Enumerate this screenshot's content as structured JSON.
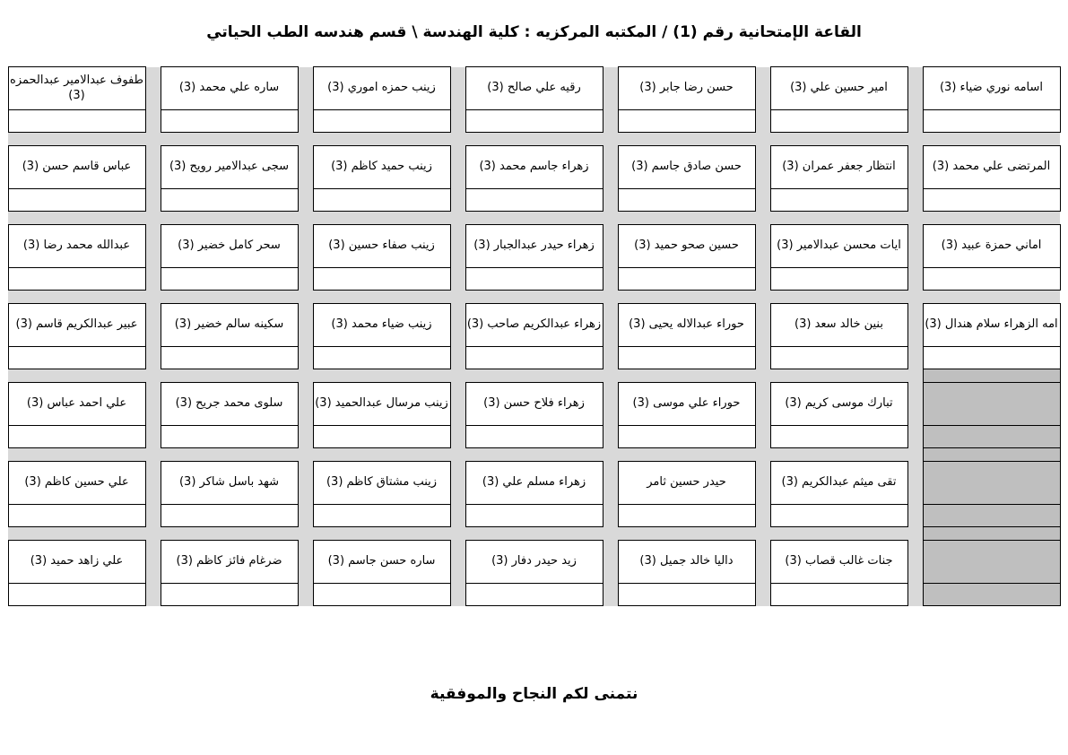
{
  "title": "القاعة الإمتحانية رقم (1) / المكتبه المركزيه : كلية الهندسة \\ قسم هندسه الطب الحياتي",
  "footer": "نتمنى لكم النجاح والموفقية",
  "colors": {
    "cell_border": "#000000",
    "separator_gray": "#d9d9d9",
    "blocked_gray": "#bfbfbf",
    "background": "#ffffff"
  },
  "seating": {
    "note_rtl": "seats are listed right-to-left as displayed; null = blocked gray seat",
    "rows": [
      {
        "seats": [
          "اسامه نوري ضياء (3)",
          "امير حسين علي (3)",
          "حسن رضا جابر (3)",
          "رقيه علي صالح (3)",
          "زينب حمزه اموري (3)",
          "ساره علي محمد (3)",
          "طفوف عبدالامير عبدالحمزه (3)"
        ]
      },
      {
        "seats": [
          "المرتضى علي محمد (3)",
          "انتظار جعفر عمران (3)",
          "حسن صادق جاسم (3)",
          "زهراء جاسم محمد (3)",
          "زينب حميد كاظم (3)",
          "سجى عبدالامير رويح (3)",
          "عباس قاسم حسن (3)"
        ]
      },
      {
        "seats": [
          "اماني حمزة عبيد (3)",
          "ايات محسن عبدالامير (3)",
          "حسين صحو حميد (3)",
          "زهراء حيدر عبدالجبار (3)",
          "زينب صفاء حسين (3)",
          "سحر كامل خضير (3)",
          "عبدالله محمد رضا (3)"
        ]
      },
      {
        "seats": [
          "امه الزهراء سلام هندال (3)",
          "بنين خالد سعد (3)",
          "حوراء عبدالاله يحيى (3)",
          "زهراء عبدالكريم صاحب (3)",
          "زينب ضياء محمد (3)",
          "سكينه سالم خضير (3)",
          "عبير عبدالكريم قاسم (3)"
        ]
      },
      {
        "seats": [
          null,
          "تبارك موسى كريم (3)",
          "حوراء علي موسى (3)",
          "زهراء فلاح حسن (3)",
          "زينب مرسال عبدالحميد (3)",
          "سلوى محمد جريح (3)",
          "علي احمد عباس (3)"
        ]
      },
      {
        "seats": [
          null,
          "تقى ميثم عبدالكريم (3)",
          "حيدر حسين ثامر",
          "زهراء مسلم علي (3)",
          "زينب مشتاق كاظم (3)",
          "شهد باسل شاكر (3)",
          "علي حسين كاظم (3)"
        ]
      },
      {
        "seats": [
          null,
          "جنات غالب قصاب (3)",
          "داليا خالد جميل (3)",
          "زيد حيدر دفار (3)",
          "ساره حسن جاسم (3)",
          "ضرغام فائز كاظم (3)",
          "علي زاهد حميد (3)"
        ]
      }
    ]
  }
}
